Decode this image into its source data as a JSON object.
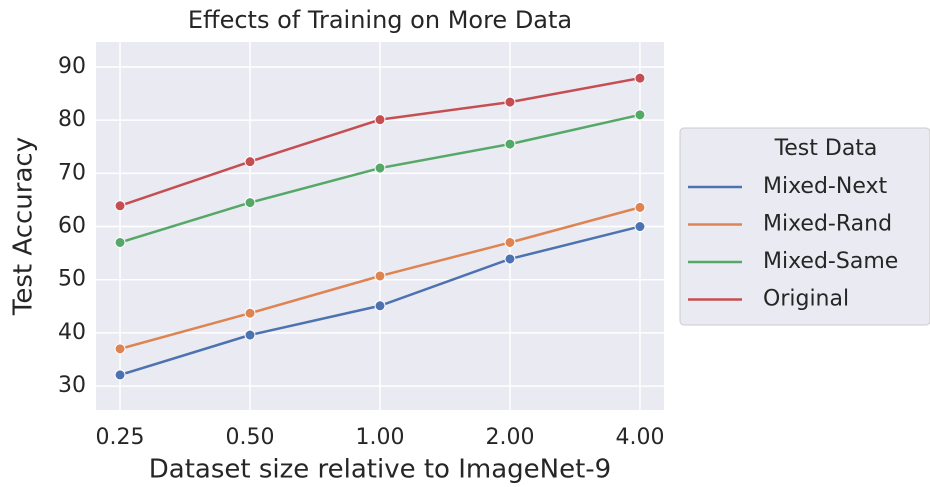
{
  "chart_data": {
    "type": "line",
    "title": "Effects of Training on More Data",
    "x_label": "Dataset size relative to ImageNet-9",
    "y_label": "Test Accuracy",
    "categories": [
      "0.25",
      "0.50",
      "1.00",
      "2.00",
      "4.00"
    ],
    "series": [
      {
        "name": "Mixed-Next",
        "color": "#4c72b0",
        "values": [
          32.1,
          39.6,
          45.1,
          53.9,
          60.0
        ]
      },
      {
        "name": "Mixed-Rand",
        "color": "#dd8452",
        "values": [
          37.0,
          43.7,
          50.7,
          57.0,
          63.6
        ]
      },
      {
        "name": "Mixed-Same",
        "color": "#55a868",
        "values": [
          57.0,
          64.5,
          71.0,
          75.5,
          81.0
        ]
      },
      {
        "name": "Original",
        "color": "#c44e52",
        "values": [
          63.9,
          72.2,
          80.1,
          83.4,
          87.9
        ]
      }
    ],
    "legend_title": "Test Data",
    "legend": "right",
    "ylim": [
      25.5,
      94.7
    ],
    "yticks": [
      30,
      40,
      50,
      60,
      70,
      80,
      90
    ],
    "grid": true
  }
}
